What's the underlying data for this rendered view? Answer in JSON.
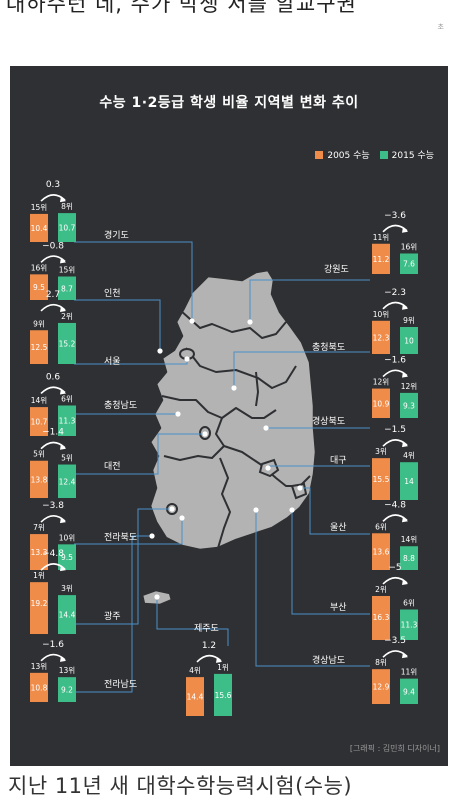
{
  "page": {
    "top_cut_text": "대하수턴 네, 수가 박생 서를 알교구권",
    "top_mark": "초",
    "caption": "지난 11년 새 대학수학능력시험(수능)",
    "credit": "[그래픽 : 김민희 디자이너]"
  },
  "colors": {
    "c2005": "#f08c4a",
    "c2015": "#3dbd87",
    "background": "#2f3033",
    "map": "#b3b3b3",
    "line": "#4a90c8"
  },
  "chart_data": {
    "type": "bar",
    "title": "수능 1·2등급 학생 비율 지역별 변화 추이",
    "legend": [
      "2005 수능",
      "2015 수능"
    ],
    "legend_position": "top-right",
    "series_names": [
      "2005 수능",
      "2015 수능"
    ],
    "regions": [
      {
        "name": "경기도",
        "rank2005": "15위",
        "rank2015": "8위",
        "v2005": 10.4,
        "v2015": 10.7,
        "change": "0.3"
      },
      {
        "name": "인천",
        "rank2005": "16위",
        "rank2015": "15위",
        "v2005": 9.5,
        "v2015": 8.7,
        "change": "−0.8"
      },
      {
        "name": "서울",
        "rank2005": "9위",
        "rank2015": "2위",
        "v2005": 12.5,
        "v2015": 15.2,
        "change": "2.7"
      },
      {
        "name": "충청남도",
        "rank2005": "14위",
        "rank2015": "6위",
        "v2005": 10.7,
        "v2015": 11.3,
        "change": "0.6"
      },
      {
        "name": "대전",
        "rank2005": "5위",
        "rank2015": "5위",
        "v2005": 13.8,
        "v2015": 12.4,
        "change": "−1.4"
      },
      {
        "name": "전라북도",
        "rank2005": "7위",
        "rank2015": "10위",
        "v2005": 13.3,
        "v2015": 9.5,
        "change": "−3.8"
      },
      {
        "name": "광주",
        "rank2005": "1위",
        "rank2015": "3위",
        "v2005": 19.2,
        "v2015": 14.4,
        "change": "−4.8"
      },
      {
        "name": "전라남도",
        "rank2005": "13위",
        "rank2015": "13위",
        "v2005": 10.8,
        "v2015": 9.2,
        "change": "−1.6"
      },
      {
        "name": "제주도",
        "rank2005": "4위",
        "rank2015": "1위",
        "v2005": 14.4,
        "v2015": 15.6,
        "change": "1.2"
      },
      {
        "name": "강원도",
        "rank2005": "11위",
        "rank2015": "16위",
        "v2005": 11.2,
        "v2015": 7.6,
        "change": "−3.6"
      },
      {
        "name": "충청북도",
        "rank2005": "10위",
        "rank2015": "9위",
        "v2005": 12.3,
        "v2015": 10,
        "change": "−2.3"
      },
      {
        "name": "경상북도",
        "rank2005": "12위",
        "rank2015": "12위",
        "v2005": 10.9,
        "v2015": 9.3,
        "change": "−1.6"
      },
      {
        "name": "대구",
        "rank2005": "3위",
        "rank2015": "4위",
        "v2005": 15.5,
        "v2015": 14,
        "change": "−1.5"
      },
      {
        "name": "울산",
        "rank2005": "6위",
        "rank2015": "14위",
        "v2005": 13.6,
        "v2015": 8.8,
        "change": "−4.8"
      },
      {
        "name": "부산",
        "rank2005": "2위",
        "rank2015": "6위",
        "v2005": 16.3,
        "v2015": 11.3,
        "change": "−5"
      },
      {
        "name": "경상남도",
        "rank2005": "8위",
        "rank2015": "11위",
        "v2005": 12.9,
        "v2015": 9.4,
        "change": "−3.5"
      }
    ]
  }
}
